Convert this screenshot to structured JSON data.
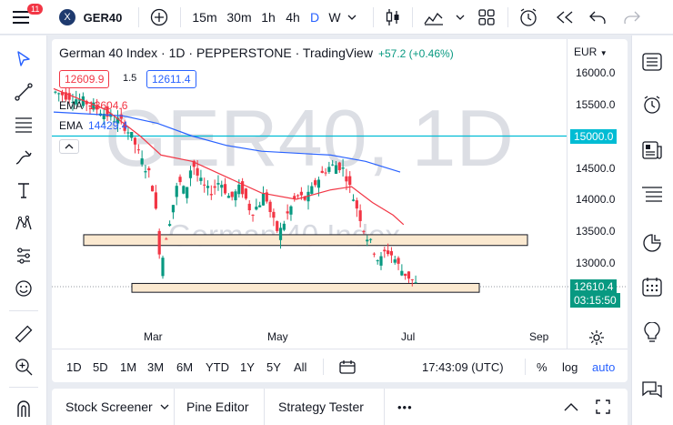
{
  "topbar": {
    "badge": "11",
    "symbol_logo": "X",
    "symbol": "GER40",
    "intervals": [
      "15m",
      "30m",
      "1h",
      "4h",
      "D",
      "W"
    ],
    "active_interval": "D"
  },
  "legend": {
    "title": "German 40 Index · 1D · PEPPERSTONE · TradingView",
    "change": "+57.2 (+0.46%)",
    "sell": "12609.9",
    "spread": "1.5",
    "buy": "12611.4",
    "ema1_label": "EMA",
    "ema1_value": "13604.6",
    "ema2_label": "EMA",
    "ema2_value": "14429.4",
    "currency": "EUR"
  },
  "watermark": {
    "line1": "GER40, 1D",
    "line2": "German 40 Index"
  },
  "price_axis": [
    "16000.0",
    "15500.0",
    "15000.0",
    "14500.0",
    "14000.0",
    "13500.0",
    "13000.0"
  ],
  "price_tags": {
    "line_level": "15000.0",
    "current": "12610.4",
    "countdown": "03:15:50"
  },
  "time_axis": [
    "Mar",
    "May",
    "Jul",
    "Sep"
  ],
  "controls": {
    "ranges": [
      "1D",
      "5D",
      "1M",
      "3M",
      "6M",
      "YTD",
      "1Y",
      "5Y",
      "All"
    ],
    "time": "17:43:09 (UTC)",
    "percent": "%",
    "log": "log",
    "auto": "auto"
  },
  "bottom": {
    "tabs": [
      "Stock Screener",
      "Pine Editor",
      "Strategy Tester"
    ],
    "more": "•••"
  },
  "colors": {
    "up": "#089981",
    "down": "#f23645",
    "ema_fast": "#f23645",
    "ema_slow": "#2962ff",
    "hline": "#00bcd4",
    "zone_fill": "#fbe9d0"
  },
  "chart_data": {
    "type": "candlestick",
    "symbol": "GER40",
    "timeframe": "1D",
    "ylim": [
      12150,
      16150
    ],
    "x_ticks": [
      "Mar",
      "May",
      "Jul",
      "Sep"
    ],
    "horizontal_line": 15000,
    "zones": [
      {
        "from": 13270,
        "to": 13440
      },
      {
        "from": 12530,
        "to": 12670
      }
    ],
    "close_path": [
      {
        "x": 0,
        "y": 15700
      },
      {
        "x": 10,
        "y": 15620
      },
      {
        "x": 20,
        "y": 15520
      },
      {
        "x": 30,
        "y": 15350
      },
      {
        "x": 40,
        "y": 15200
      },
      {
        "x": 46,
        "y": 14950
      },
      {
        "x": 50,
        "y": 14650
      },
      {
        "x": 55,
        "y": 14400
      },
      {
        "x": 58,
        "y": 14100
      },
      {
        "x": 60,
        "y": 13500
      },
      {
        "x": 62,
        "y": 12900
      },
      {
        "x": 64,
        "y": 13300
      },
      {
        "x": 68,
        "y": 13800
      },
      {
        "x": 72,
        "y": 14300
      },
      {
        "x": 76,
        "y": 14100
      },
      {
        "x": 80,
        "y": 14600
      },
      {
        "x": 84,
        "y": 14300
      },
      {
        "x": 90,
        "y": 14100
      },
      {
        "x": 96,
        "y": 14300
      },
      {
        "x": 102,
        "y": 14000
      },
      {
        "x": 108,
        "y": 14200
      },
      {
        "x": 114,
        "y": 13800
      },
      {
        "x": 118,
        "y": 13900
      },
      {
        "x": 122,
        "y": 14100
      },
      {
        "x": 126,
        "y": 13700
      },
      {
        "x": 130,
        "y": 13450
      },
      {
        "x": 134,
        "y": 13700
      },
      {
        "x": 140,
        "y": 14050
      },
      {
        "x": 146,
        "y": 14000
      },
      {
        "x": 152,
        "y": 14300
      },
      {
        "x": 158,
        "y": 14500
      },
      {
        "x": 164,
        "y": 14550
      },
      {
        "x": 168,
        "y": 14450
      },
      {
        "x": 172,
        "y": 14100
      },
      {
        "x": 176,
        "y": 13800
      },
      {
        "x": 180,
        "y": 13450
      },
      {
        "x": 184,
        "y": 13250
      },
      {
        "x": 188,
        "y": 13000
      },
      {
        "x": 192,
        "y": 13200
      },
      {
        "x": 196,
        "y": 13100
      },
      {
        "x": 200,
        "y": 12900
      },
      {
        "x": 204,
        "y": 12800
      },
      {
        "x": 208,
        "y": 12700
      },
      {
        "x": 210,
        "y": 12610
      }
    ],
    "ema_fast": [
      {
        "x": 0,
        "y": 15750
      },
      {
        "x": 30,
        "y": 15420
      },
      {
        "x": 50,
        "y": 15000
      },
      {
        "x": 62,
        "y": 14700
      },
      {
        "x": 80,
        "y": 14600
      },
      {
        "x": 100,
        "y": 14350
      },
      {
        "x": 120,
        "y": 14100
      },
      {
        "x": 140,
        "y": 14000
      },
      {
        "x": 160,
        "y": 14150
      },
      {
        "x": 172,
        "y": 14200
      },
      {
        "x": 184,
        "y": 13950
      },
      {
        "x": 196,
        "y": 13750
      },
      {
        "x": 202,
        "y": 13600
      }
    ],
    "ema_slow": [
      {
        "x": 0,
        "y": 15380
      },
      {
        "x": 40,
        "y": 15320
      },
      {
        "x": 60,
        "y": 15200
      },
      {
        "x": 80,
        "y": 15000
      },
      {
        "x": 100,
        "y": 14850
      },
      {
        "x": 120,
        "y": 14760
      },
      {
        "x": 140,
        "y": 14730
      },
      {
        "x": 160,
        "y": 14700
      },
      {
        "x": 180,
        "y": 14600
      },
      {
        "x": 200,
        "y": 14430
      }
    ],
    "last_price": 12610.4
  }
}
